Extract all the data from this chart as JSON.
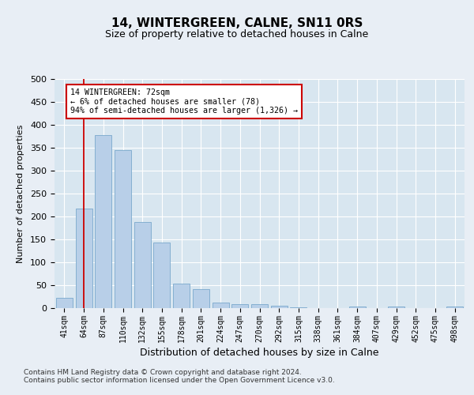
{
  "title": "14, WINTERGREEN, CALNE, SN11 0RS",
  "subtitle": "Size of property relative to detached houses in Calne",
  "xlabel": "Distribution of detached houses by size in Calne",
  "ylabel": "Number of detached properties",
  "categories": [
    "41sqm",
    "64sqm",
    "87sqm",
    "110sqm",
    "132sqm",
    "155sqm",
    "178sqm",
    "201sqm",
    "224sqm",
    "247sqm",
    "270sqm",
    "292sqm",
    "315sqm",
    "338sqm",
    "361sqm",
    "384sqm",
    "407sqm",
    "429sqm",
    "452sqm",
    "475sqm",
    "498sqm"
  ],
  "values": [
    22,
    218,
    378,
    345,
    188,
    143,
    53,
    41,
    12,
    9,
    9,
    5,
    1,
    0,
    0,
    4,
    0,
    4,
    0,
    0,
    4
  ],
  "bar_color": "#b8cfe8",
  "bar_edge_color": "#7aa8cc",
  "vline_x": 1,
  "vline_color": "#cc0000",
  "annotation_text": "14 WINTERGREEN: 72sqm\n← 6% of detached houses are smaller (78)\n94% of semi-detached houses are larger (1,326) →",
  "annotation_box_color": "#ffffff",
  "annotation_box_edge": "#cc0000",
  "ylim": [
    0,
    500
  ],
  "yticks": [
    0,
    50,
    100,
    150,
    200,
    250,
    300,
    350,
    400,
    450,
    500
  ],
  "footnote1": "Contains HM Land Registry data © Crown copyright and database right 2024.",
  "footnote2": "Contains public sector information licensed under the Open Government Licence v3.0.",
  "bg_color": "#e8eef5",
  "plot_bg_color": "#d8e6f0"
}
